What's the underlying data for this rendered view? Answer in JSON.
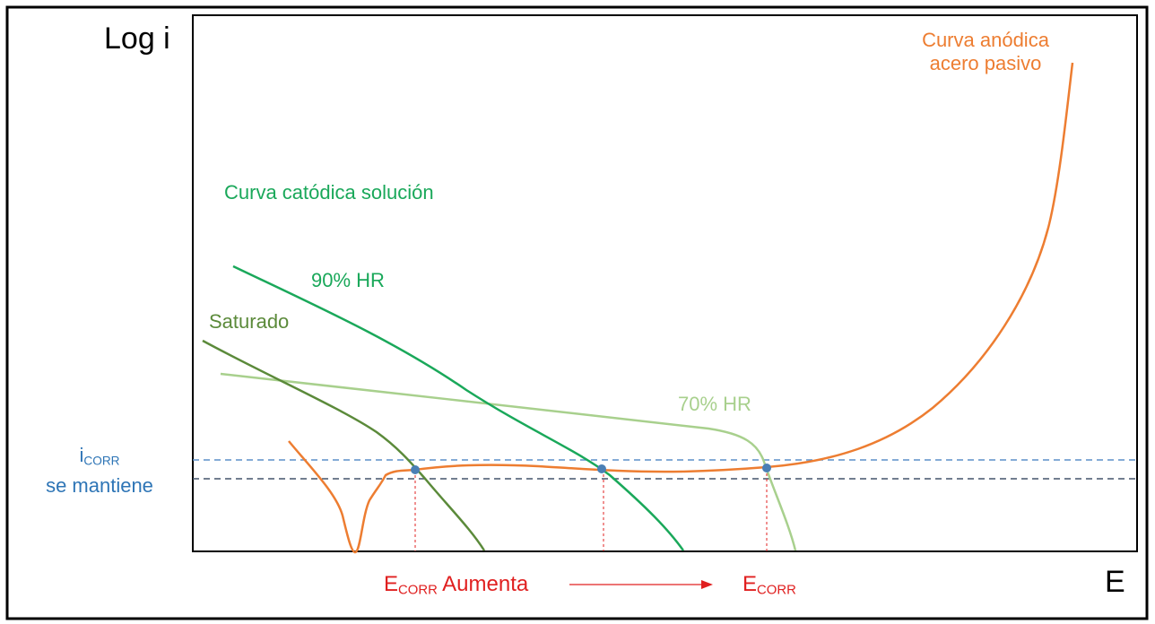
{
  "axes": {
    "y_label": "Log i",
    "x_label": "E"
  },
  "labels": {
    "anodic_line1": "Curva anódica",
    "anodic_line2": "acero pasivo",
    "cathodic_title": "Curva catódica solución",
    "hr90": "90% HR",
    "saturado": "Saturado",
    "hr70": "70% HR",
    "icorr_main": "i",
    "icorr_sub": "CORR",
    "icorr_line2": "se mantiene",
    "ecorr_left_main": "E",
    "ecorr_left_sub": "CORR",
    "ecorr_left_text": "Aumenta",
    "ecorr_right_main": "E",
    "ecorr_right_sub": "CORR"
  },
  "colors": {
    "anodic": "#ed7d31",
    "saturado": "#5b8a3a",
    "hr90": "#1aa85a",
    "hr70": "#a8d08d",
    "icorr": "#2e75b6",
    "ecorr": "#e02020"
  }
}
